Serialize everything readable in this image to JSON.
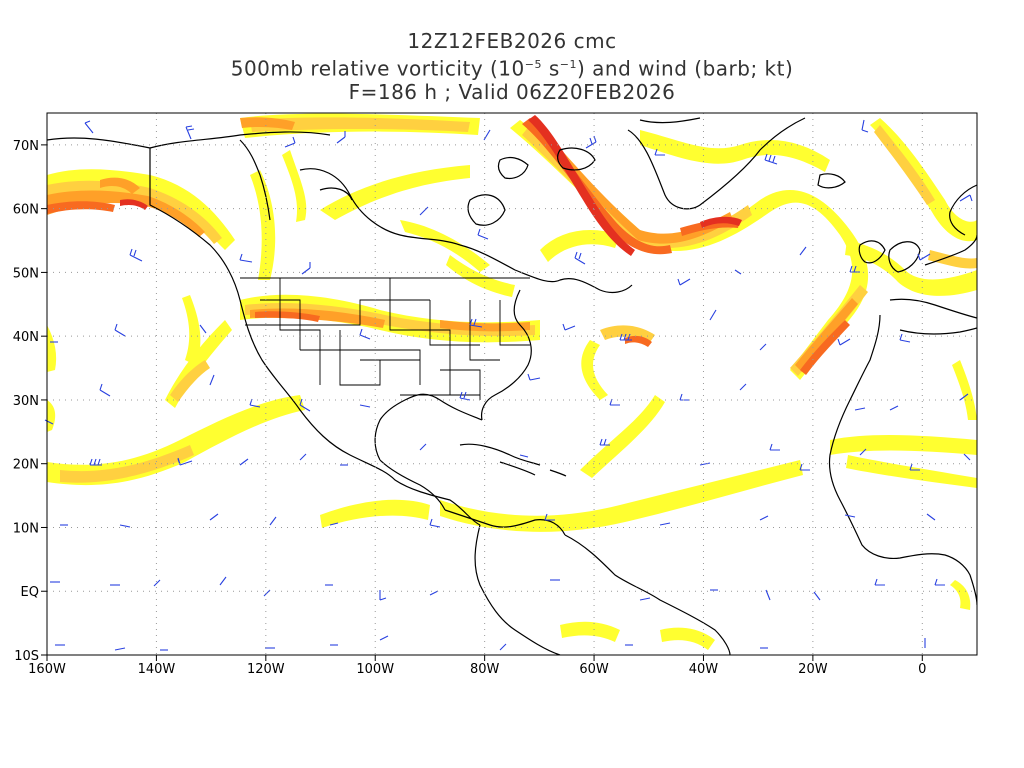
{
  "titles": {
    "line1": "12Z12FEB2026 cmc",
    "line2_prefix": "500mb relative vorticity (10",
    "line2_exp": "−5",
    "line2_mid": " s",
    "line2_exp2": "−1",
    "line2_suffix": ") and wind (barb; kt)",
    "line3": "F=186 h ; Valid 06Z20FEB2026"
  },
  "axes": {
    "lon_labels": [
      "160W",
      "140W",
      "120W",
      "100W",
      "80W",
      "60W",
      "40W",
      "20W",
      "0"
    ],
    "lon_values": [
      -160,
      -140,
      -120,
      -100,
      -80,
      -60,
      -40,
      -20,
      0
    ],
    "lat_labels": [
      "70N",
      "60N",
      "50N",
      "40N",
      "30N",
      "20N",
      "10N",
      "EQ",
      "10S"
    ],
    "lat_values": [
      70,
      60,
      50,
      40,
      30,
      20,
      10,
      0,
      -10
    ],
    "lon_range": [
      -160,
      10
    ],
    "lat_range": [
      -10,
      75
    ],
    "grid": "dotted"
  },
  "colors": {
    "level1": "#ffff30",
    "level2": "#ffd040",
    "level3": "#ffa028",
    "level4": "#f86a20",
    "level5": "#e43020",
    "barb": "#2840e0",
    "coast": "#000000",
    "grid": "#999999"
  }
}
